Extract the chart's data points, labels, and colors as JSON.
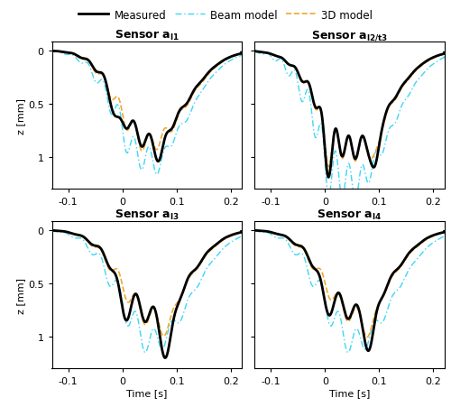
{
  "subplots": [
    {
      "title": "Sensor $\\bf{a}_{l1}$",
      "ylabel": "z [mm]",
      "xlabel": ""
    },
    {
      "title": "Sensor $\\bf{a}_{l2/t3}$",
      "ylabel": "",
      "xlabel": ""
    },
    {
      "title": "Sensor $\\bf{a}_{l3}$",
      "ylabel": "z [mm]",
      "xlabel": "Time [s]"
    },
    {
      "title": "Sensor $\\bf{a}_{l4}$",
      "ylabel": "",
      "xlabel": "Time [s]"
    }
  ],
  "legend_labels": [
    "Measured",
    "Beam model",
    "3D model"
  ],
  "measured_color": "#000000",
  "beam_color": "#3dd6f5",
  "model3d_color": "#f0a830",
  "beam_lw": 1.0,
  "model3d_lw": 1.2,
  "measured_lw": 2.0,
  "xlim": [
    -0.13,
    0.22
  ],
  "xticks": [
    -0.1,
    0,
    0.1,
    0.2
  ],
  "ylim": [
    1.3,
    -0.08
  ],
  "yticks": [
    0,
    0.5,
    1
  ]
}
